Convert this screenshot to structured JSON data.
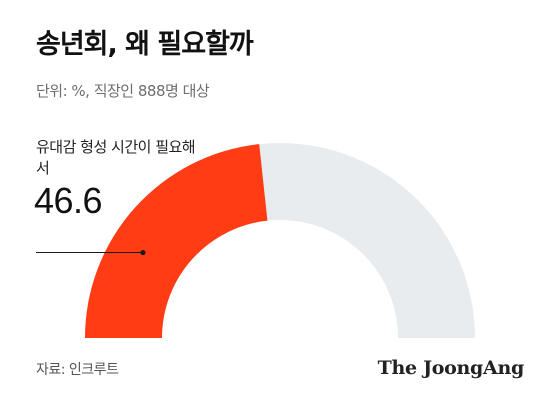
{
  "header": {
    "title": "송년회, 왜 필요할까",
    "subtitle": "단위: %, 직장인 888명 대상"
  },
  "callout": {
    "label": "유대감 형성 시간이 필요해서",
    "value": "46.6"
  },
  "footer": {
    "source": "자료: 인크루트",
    "logo": "The JoongAng"
  },
  "colors": {
    "filled": "#ff3c14",
    "track": "#e8ecee",
    "leader": "#1a1a1a"
  },
  "chart_data": {
    "type": "pie",
    "style": "semi-donut",
    "title": "송년회, 왜 필요할까",
    "unit": "%",
    "max": 100,
    "slices": [
      {
        "label": "유대감 형성 시간이 필요해서",
        "value": 46.6
      }
    ]
  }
}
